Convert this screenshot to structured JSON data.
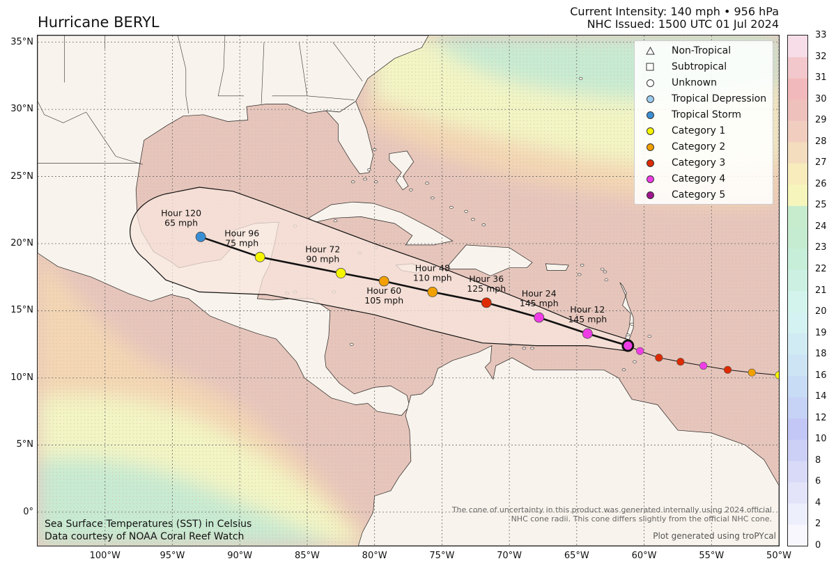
{
  "header": {
    "title": "Hurricane BERYL",
    "intensity": "Current Intensity: 140 mph • 956 hPa",
    "issued": "NHC Issued: 1500 UTC 01 Jul 2024"
  },
  "map": {
    "lon_range": [
      -105,
      -50
    ],
    "lat_range": [
      -2.5,
      35.5
    ],
    "lat_ticks": [
      {
        "value": 35,
        "label": "35°N"
      },
      {
        "value": 30,
        "label": "30°N"
      },
      {
        "value": 25,
        "label": "25°N"
      },
      {
        "value": 20,
        "label": "20°N"
      },
      {
        "value": 15,
        "label": "15°N"
      },
      {
        "value": 10,
        "label": "10°N"
      },
      {
        "value": 5,
        "label": "5°N"
      },
      {
        "value": 0,
        "label": "0°"
      }
    ],
    "lon_ticks": [
      {
        "value": -100,
        "label": "100°W"
      },
      {
        "value": -95,
        "label": "95°W"
      },
      {
        "value": -90,
        "label": "90°W"
      },
      {
        "value": -85,
        "label": "85°W"
      },
      {
        "value": -80,
        "label": "80°W"
      },
      {
        "value": -75,
        "label": "75°W"
      },
      {
        "value": -70,
        "label": "70°W"
      },
      {
        "value": -65,
        "label": "65°W"
      },
      {
        "value": -60,
        "label": "60°W"
      },
      {
        "value": -55,
        "label": "55°W"
      },
      {
        "value": -50,
        "label": "50°W"
      }
    ],
    "colors": {
      "land": "#f8f3ec",
      "ocean_warm": "#e6c6bc",
      "ocean_hot": "#e2b4ae",
      "ocean_mid": "#f3d7b4",
      "ocean_cool": "#f2f5c4",
      "ocean_cold": "#c7ebd2",
      "cone_fill": "#f8e6dd"
    }
  },
  "legend": {
    "items": [
      {
        "label": "Non-Tropical",
        "symbol": "triangle",
        "color": "#ffffff"
      },
      {
        "label": "Subtropical",
        "symbol": "square",
        "color": "#ffffff"
      },
      {
        "label": "Unknown",
        "symbol": "circle",
        "color": "#ffffff"
      },
      {
        "label": "Tropical Depression",
        "symbol": "circle",
        "color": "#9ccbee"
      },
      {
        "label": "Tropical Storm",
        "symbol": "circle",
        "color": "#3a8fd4"
      },
      {
        "label": "Category 1",
        "symbol": "circle",
        "color": "#f5f500"
      },
      {
        "label": "Category 2",
        "symbol": "circle",
        "color": "#f2a000"
      },
      {
        "label": "Category 3",
        "symbol": "circle",
        "color": "#dd2a00"
      },
      {
        "label": "Category 4",
        "symbol": "circle",
        "color": "#ee3de5"
      },
      {
        "label": "Category 5",
        "symbol": "circle",
        "color": "#a0158f"
      }
    ]
  },
  "track": {
    "past": [
      {
        "lon": -50.0,
        "lat": 10.2,
        "color": "#f5f500"
      },
      {
        "lon": -52.0,
        "lat": 10.4,
        "color": "#f2a000"
      },
      {
        "lon": -53.8,
        "lat": 10.6,
        "color": "#dd2a00"
      },
      {
        "lon": -55.6,
        "lat": 10.9,
        "color": "#ee3de5"
      },
      {
        "lon": -57.3,
        "lat": 11.2,
        "color": "#dd2a00"
      },
      {
        "lon": -58.9,
        "lat": 11.5,
        "color": "#dd2a00"
      },
      {
        "lon": -60.3,
        "lat": 12.0,
        "color": "#ee3de5"
      }
    ],
    "current": {
      "lon": -61.2,
      "lat": 12.4,
      "color": "#ee3de5"
    },
    "forecast": [
      {
        "hour": "Hour 12",
        "wind": "145 mph",
        "lon": -64.2,
        "lat": 13.3,
        "color": "#ee3de5"
      },
      {
        "hour": "Hour 24",
        "wind": "145 mph",
        "lon": -67.8,
        "lat": 14.5,
        "color": "#ee3de5"
      },
      {
        "hour": "Hour 36",
        "wind": "125 mph",
        "lon": -71.7,
        "lat": 15.6,
        "color": "#dd2a00"
      },
      {
        "hour": "Hour 48",
        "wind": "110 mph",
        "lon": -75.7,
        "lat": 16.4,
        "color": "#f2a000"
      },
      {
        "hour": "Hour 60",
        "wind": "105 mph",
        "lon": -79.3,
        "lat": 17.2,
        "color": "#f2a000"
      },
      {
        "hour": "Hour 72",
        "wind": "90 mph",
        "lon": -82.5,
        "lat": 17.8,
        "color": "#f5f500"
      },
      {
        "hour": "Hour 96",
        "wind": "75 mph",
        "lon": -88.5,
        "lat": 19.0,
        "color": "#f5f500"
      },
      {
        "hour": "Hour 120",
        "wind": "65 mph",
        "lon": -92.9,
        "lat": 20.5,
        "color": "#3a8fd4"
      }
    ]
  },
  "colorbar": {
    "ticks": [
      "0",
      "2",
      "4",
      "6",
      "8",
      "10",
      "12",
      "14",
      "16",
      "18",
      "19",
      "20",
      "21",
      "22",
      "23",
      "24",
      "25",
      "26",
      "27",
      "28",
      "29",
      "30",
      "31",
      "32",
      "33"
    ],
    "colors": [
      "#f7f7fd",
      "#eeeffc",
      "#e3e4fa",
      "#d8daf8",
      "#cdd0f6",
      "#c3c7f5",
      "#c6d3f6",
      "#c9dcf6",
      "#cde4f5",
      "#d0ebf3",
      "#d3f2f1",
      "#d3f4ec",
      "#ccf1e2",
      "#c6eed8",
      "#c5ecd0",
      "#c7ebcd",
      "#f6f6bc",
      "#f8ecbc",
      "#f4dcbf",
      "#f1cdbf",
      "#efc1bd",
      "#f1b9bb",
      "#f3c8cc",
      "#f7dde8"
    ]
  },
  "captions": {
    "sst_line1": "Sea Surface Temperatures (SST) in Celsius",
    "sst_line2": "Data courtesy of NOAA Coral Reef Watch",
    "cone_note_line1": "The cone of uncertainty in this product was generated internally using 2024 official",
    "cone_note_line2": "NHC cone radii. This cone differs slightly from the official NHC cone.",
    "credit": "Plot generated using troPYcal"
  }
}
